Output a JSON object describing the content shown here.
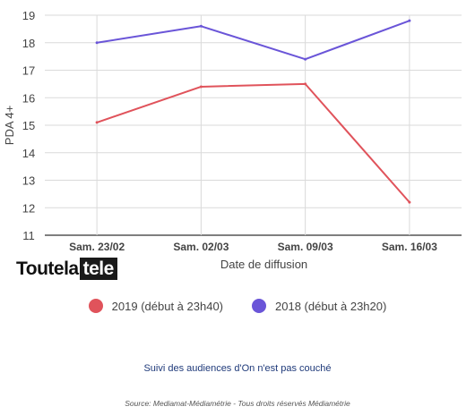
{
  "chart_data": {
    "type": "line",
    "categories": [
      "Sam. 23/02",
      "Sam. 02/03",
      "Sam. 09/03",
      "Sam. 16/03"
    ],
    "series": [
      {
        "name": "2019 (début à 23h40)",
        "color": "#e0535b",
        "values": [
          15.1,
          16.4,
          16.5,
          12.2
        ]
      },
      {
        "name": "2018 (début à 23h20)",
        "color": "#6a55d8",
        "values": [
          18.0,
          18.6,
          17.4,
          18.8
        ]
      }
    ],
    "xlabel": "Date de diffusion",
    "ylabel": "PDA 4+",
    "ylim": [
      11,
      19
    ],
    "yticks": [
      11,
      12,
      13,
      14,
      15,
      16,
      17,
      18,
      19
    ],
    "grid": true,
    "legend_position": "bottom"
  },
  "logo": {
    "part1": "Toutela",
    "part2": "tele"
  },
  "caption": "Suivi des audiences d'On n'est pas couché",
  "source": "Source: Mediamat-Médiamétrie - Tous droits réservés Médiamétrie"
}
